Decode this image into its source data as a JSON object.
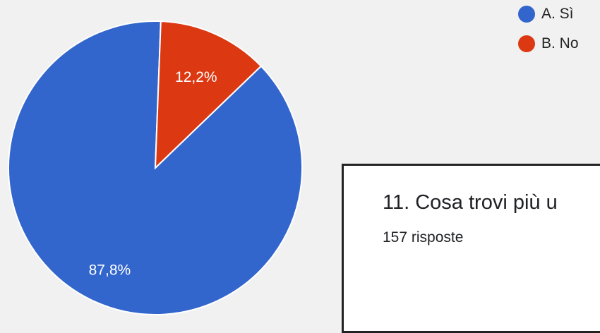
{
  "chart_data": {
    "type": "pie",
    "categories": [
      "A. Sì",
      "B. No"
    ],
    "values": [
      87.8,
      12.2
    ],
    "value_labels": [
      "87,8%",
      "12,2%"
    ],
    "colors": [
      "#3366cc",
      "#dc3912"
    ],
    "legend_position": "top-right"
  },
  "legend": {
    "items": [
      {
        "label": "A. Sì",
        "color": "#3366cc"
      },
      {
        "label": "B. No",
        "color": "#dc3912"
      }
    ]
  },
  "next_question": {
    "title": "11. Cosa trovi più u",
    "responses": "157 risposte"
  }
}
